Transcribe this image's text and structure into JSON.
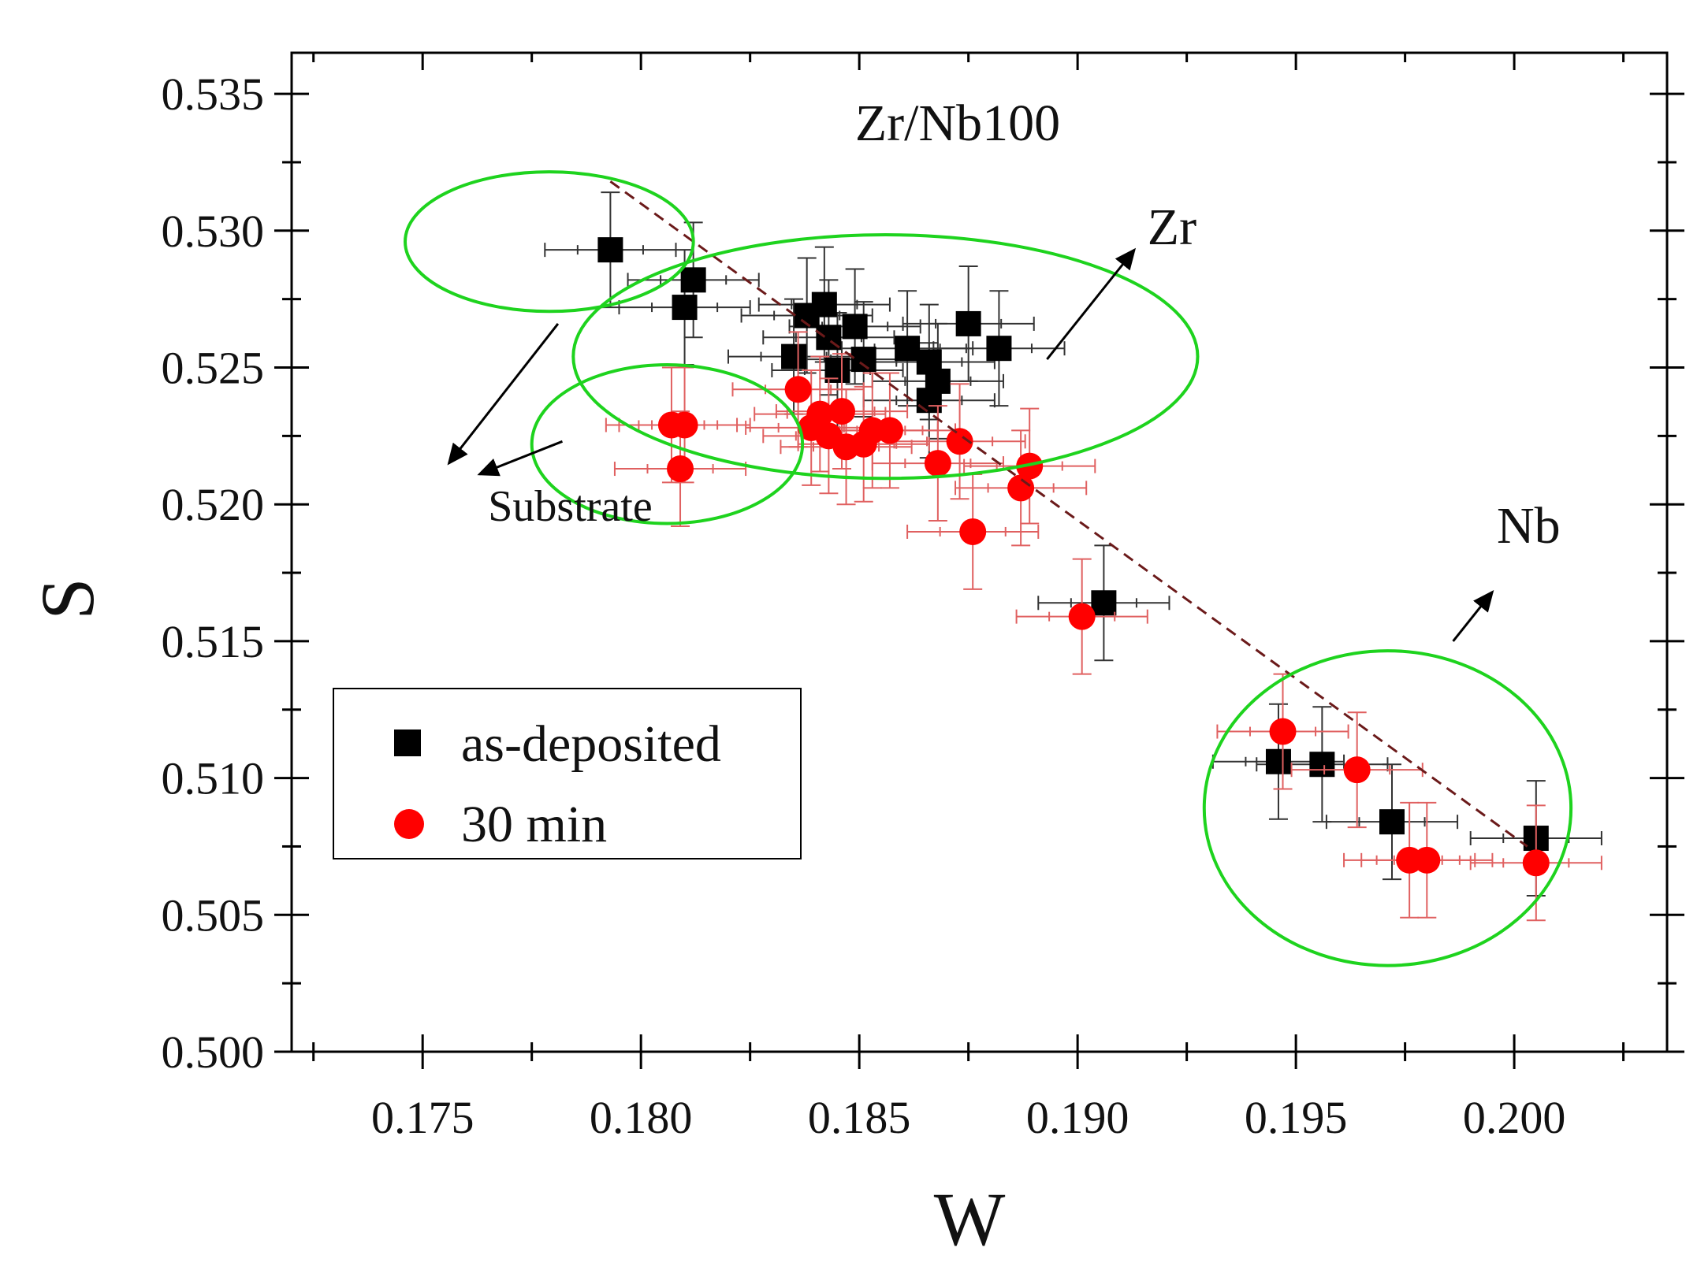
{
  "chart_data": {
    "type": "scatter",
    "title": "Zr/Nb100",
    "xlabel": "W",
    "ylabel": "S",
    "xlim": [
      0.172,
      0.2035
    ],
    "ylim": [
      0.5,
      0.5365
    ],
    "x_ticks": [
      "0.175",
      "0.180",
      "0.185",
      "0.190",
      "0.195",
      "0.200"
    ],
    "x_tick_values": [
      0.175,
      0.18,
      0.185,
      0.19,
      0.195,
      0.2
    ],
    "y_ticks": [
      "0.500",
      "0.505",
      "0.510",
      "0.515",
      "0.520",
      "0.525",
      "0.530",
      "0.535"
    ],
    "y_tick_values": [
      0.5,
      0.505,
      0.51,
      0.515,
      0.52,
      0.525,
      0.53,
      0.535
    ],
    "legend": {
      "position": "lower-left",
      "entries": [
        {
          "label": "as-deposited",
          "marker": "square",
          "color": "#000000"
        },
        {
          "label": "30 min",
          "marker": "circle",
          "color": "#ff0000"
        }
      ]
    },
    "series": [
      {
        "name": "as-deposited",
        "marker": "square",
        "color": "#000000",
        "error_color": "#333333",
        "points": [
          {
            "x": 0.1793,
            "y": 0.5293,
            "xerr": 0.0015,
            "yerr": 0.0021
          },
          {
            "x": 0.1812,
            "y": 0.5282,
            "xerr": 0.0015,
            "yerr": 0.0021
          },
          {
            "x": 0.181,
            "y": 0.5272,
            "xerr": 0.0015,
            "yerr": 0.0021
          },
          {
            "x": 0.1835,
            "y": 0.5254,
            "xerr": 0.0015,
            "yerr": 0.0021
          },
          {
            "x": 0.1838,
            "y": 0.5269,
            "xerr": 0.0015,
            "yerr": 0.0021
          },
          {
            "x": 0.1842,
            "y": 0.5273,
            "xerr": 0.0015,
            "yerr": 0.0021
          },
          {
            "x": 0.1843,
            "y": 0.5261,
            "xerr": 0.0015,
            "yerr": 0.0021
          },
          {
            "x": 0.1845,
            "y": 0.5249,
            "xerr": 0.0015,
            "yerr": 0.0021
          },
          {
            "x": 0.1849,
            "y": 0.5265,
            "xerr": 0.0015,
            "yerr": 0.0021
          },
          {
            "x": 0.1851,
            "y": 0.5253,
            "xerr": 0.0015,
            "yerr": 0.0021
          },
          {
            "x": 0.1861,
            "y": 0.5257,
            "xerr": 0.0015,
            "yerr": 0.0021
          },
          {
            "x": 0.1866,
            "y": 0.5252,
            "xerr": 0.0015,
            "yerr": 0.0021
          },
          {
            "x": 0.1868,
            "y": 0.5245,
            "xerr": 0.0015,
            "yerr": 0.0021
          },
          {
            "x": 0.1866,
            "y": 0.5238,
            "xerr": 0.0015,
            "yerr": 0.0021
          },
          {
            "x": 0.1875,
            "y": 0.5266,
            "xerr": 0.0015,
            "yerr": 0.0021
          },
          {
            "x": 0.1882,
            "y": 0.5257,
            "xerr": 0.0015,
            "yerr": 0.0021
          },
          {
            "x": 0.1906,
            "y": 0.5164,
            "xerr": 0.0015,
            "yerr": 0.0021
          },
          {
            "x": 0.1946,
            "y": 0.5106,
            "xerr": 0.0015,
            "yerr": 0.0021
          },
          {
            "x": 0.1956,
            "y": 0.5105,
            "xerr": 0.0015,
            "yerr": 0.0021
          },
          {
            "x": 0.1972,
            "y": 0.5084,
            "xerr": 0.0015,
            "yerr": 0.0021
          },
          {
            "x": 0.2005,
            "y": 0.5078,
            "xerr": 0.0015,
            "yerr": 0.0021
          }
        ]
      },
      {
        "name": "30 min",
        "marker": "circle",
        "color": "#ff0000",
        "error_color": "#e06060",
        "points": [
          {
            "x": 0.1807,
            "y": 0.5229,
            "xerr": 0.0015,
            "yerr": 0.0021
          },
          {
            "x": 0.181,
            "y": 0.5229,
            "xerr": 0.0015,
            "yerr": 0.0021
          },
          {
            "x": 0.1809,
            "y": 0.5213,
            "xerr": 0.0015,
            "yerr": 0.0021
          },
          {
            "x": 0.1836,
            "y": 0.5242,
            "xerr": 0.0015,
            "yerr": 0.0021
          },
          {
            "x": 0.1839,
            "y": 0.5228,
            "xerr": 0.0015,
            "yerr": 0.0021
          },
          {
            "x": 0.1841,
            "y": 0.5233,
            "xerr": 0.0015,
            "yerr": 0.0021
          },
          {
            "x": 0.1843,
            "y": 0.5225,
            "xerr": 0.0015,
            "yerr": 0.0021
          },
          {
            "x": 0.1846,
            "y": 0.5234,
            "xerr": 0.0015,
            "yerr": 0.0021
          },
          {
            "x": 0.1847,
            "y": 0.5221,
            "xerr": 0.0015,
            "yerr": 0.0021
          },
          {
            "x": 0.1851,
            "y": 0.5222,
            "xerr": 0.0015,
            "yerr": 0.0021
          },
          {
            "x": 0.1853,
            "y": 0.5227,
            "xerr": 0.0015,
            "yerr": 0.0021
          },
          {
            "x": 0.1857,
            "y": 0.5227,
            "xerr": 0.0015,
            "yerr": 0.0021
          },
          {
            "x": 0.1868,
            "y": 0.5215,
            "xerr": 0.0015,
            "yerr": 0.0021
          },
          {
            "x": 0.1873,
            "y": 0.5223,
            "xerr": 0.0015,
            "yerr": 0.0021
          },
          {
            "x": 0.1876,
            "y": 0.519,
            "xerr": 0.0015,
            "yerr": 0.0021
          },
          {
            "x": 0.1887,
            "y": 0.5206,
            "xerr": 0.0015,
            "yerr": 0.0021
          },
          {
            "x": 0.1889,
            "y": 0.5214,
            "xerr": 0.0015,
            "yerr": 0.0021
          },
          {
            "x": 0.1901,
            "y": 0.5159,
            "xerr": 0.0015,
            "yerr": 0.0021
          },
          {
            "x": 0.1947,
            "y": 0.5117,
            "xerr": 0.0015,
            "yerr": 0.0021
          },
          {
            "x": 0.1964,
            "y": 0.5103,
            "xerr": 0.0015,
            "yerr": 0.0021
          },
          {
            "x": 0.1976,
            "y": 0.507,
            "xerr": 0.0015,
            "yerr": 0.0021
          },
          {
            "x": 0.198,
            "y": 0.507,
            "xerr": 0.0015,
            "yerr": 0.0021
          },
          {
            "x": 0.2005,
            "y": 0.5069,
            "xerr": 0.0015,
            "yerr": 0.0021
          }
        ]
      }
    ],
    "trend_line": {
      "style": "dashed",
      "color": "#6b1a1a",
      "from": [
        0.1793,
        0.5318
      ],
      "to": [
        0.2003,
        0.5075
      ]
    },
    "highlight_ellipses": [
      {
        "name": "substrate-as-deposited",
        "cx": 0.1779,
        "cy": 0.5296,
        "rx": 0.0033,
        "ry": 0.00255
      },
      {
        "name": "substrate-30min",
        "cx": 0.1806,
        "cy": 0.5222,
        "rx": 0.0031,
        "ry": 0.0029
      },
      {
        "name": "zr-cluster",
        "cx": 0.1856,
        "cy": 0.5254,
        "rx": 0.00715,
        "ry": 0.00445
      },
      {
        "name": "nb-cluster",
        "cx": 0.1971,
        "cy": 0.5089,
        "rx": 0.0042,
        "ry": 0.00575
      }
    ],
    "annotations": [
      {
        "text": "Zr",
        "x": 0.1916,
        "y": 0.5295,
        "arrow_from": [
          0.1893,
          0.5253
        ],
        "arrow_to": [
          0.1913,
          0.5293
        ]
      },
      {
        "text": "Nb",
        "x": 0.1996,
        "y": 0.5186,
        "arrow_from": [
          0.1986,
          0.515
        ],
        "arrow_to": [
          0.1995,
          0.5168
        ]
      },
      {
        "text": "Substrate",
        "x": 0.1765,
        "y": 0.5194,
        "arrow_from": [
          0.1781,
          0.5266
        ],
        "arrow_to": [
          0.1756,
          0.5215
        ]
      },
      {
        "text": "",
        "arrow_from": [
          0.1782,
          0.5223
        ],
        "arrow_to": [
          0.1763,
          0.5211
        ]
      }
    ]
  }
}
